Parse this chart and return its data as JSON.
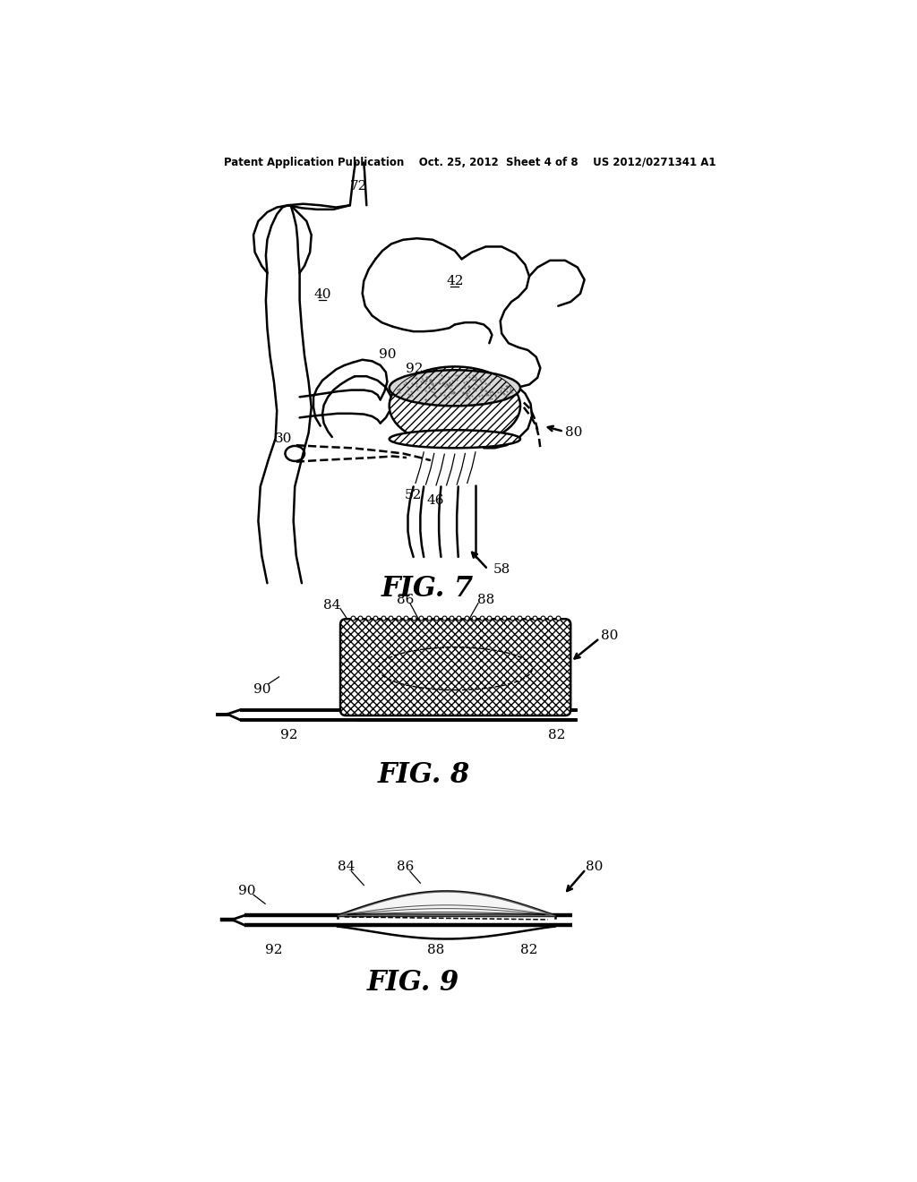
{
  "bg": "#ffffff",
  "lc": "#000000",
  "header": "Patent Application Publication    Oct. 25, 2012  Sheet 4 of 8    US 2012/0271341 A1",
  "fig7_label": "FIG. 7",
  "fig8_label": "FIG. 8",
  "fig9_label": "FIG. 9",
  "lw": 1.8,
  "fs": 11,
  "fs_fig": 22
}
